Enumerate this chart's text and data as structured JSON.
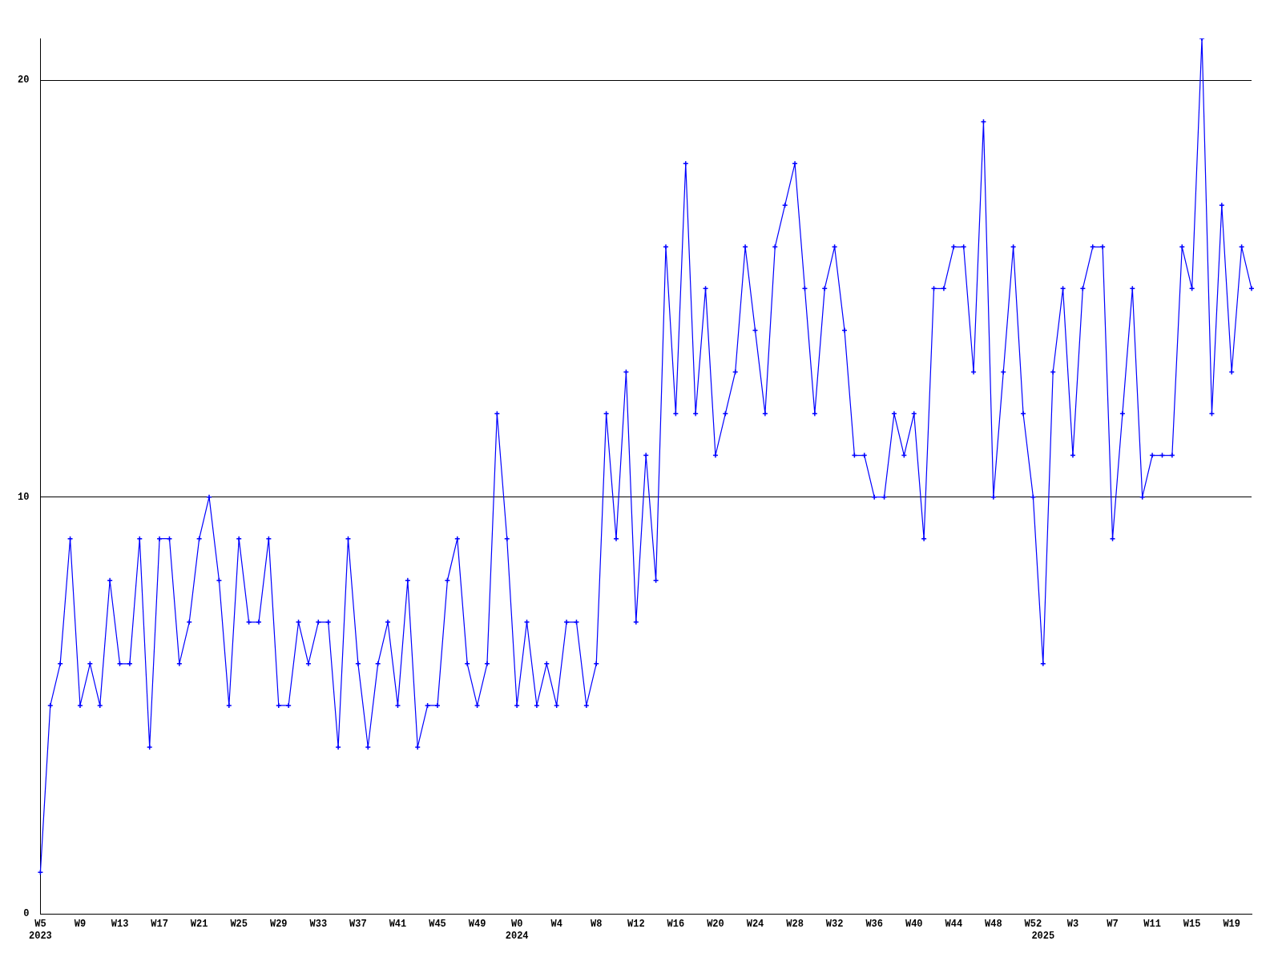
{
  "chart_data": {
    "type": "line",
    "categories": [
      "W5\n2023",
      null,
      null,
      null,
      "W9",
      null,
      null,
      null,
      "W13",
      null,
      null,
      null,
      "W17",
      null,
      null,
      null,
      "W21",
      null,
      null,
      null,
      "W25",
      null,
      null,
      null,
      "W29",
      null,
      null,
      null,
      "W33",
      null,
      null,
      null,
      "W37",
      null,
      null,
      null,
      "W41",
      null,
      null,
      null,
      "W45",
      null,
      null,
      null,
      "W49",
      null,
      null,
      null,
      "W0\n2024",
      null,
      null,
      null,
      "W4",
      null,
      null,
      null,
      "W8",
      null,
      null,
      null,
      "W12",
      null,
      null,
      null,
      "W16",
      null,
      null,
      null,
      "W20",
      null,
      null,
      null,
      "W24",
      null,
      null,
      null,
      "W28",
      null,
      null,
      null,
      "W32",
      null,
      null,
      null,
      "W36",
      null,
      null,
      null,
      "W40",
      null,
      null,
      null,
      "W44",
      null,
      null,
      null,
      "W48",
      null,
      null,
      null,
      "W52",
      "\n2025",
      null,
      null,
      "W3",
      null,
      null,
      null,
      "W7",
      null,
      null,
      null,
      "W11",
      null,
      null,
      null,
      "W15",
      null,
      null,
      null,
      "W19",
      null,
      null
    ],
    "series": [
      {
        "color": "#0000ff",
        "values": [
          1,
          5,
          6,
          9,
          5,
          6,
          5,
          8,
          6,
          6,
          9,
          4,
          9,
          9,
          6,
          7,
          9,
          10,
          8,
          5,
          9,
          7,
          7,
          9,
          5,
          5,
          7,
          6,
          7,
          7,
          4,
          9,
          6,
          4,
          6,
          7,
          5,
          8,
          4,
          5,
          5,
          8,
          9,
          6,
          5,
          6,
          12,
          9,
          5,
          7,
          5,
          6,
          5,
          7,
          7,
          5,
          6,
          12,
          9,
          13,
          7,
          11,
          8,
          16,
          12,
          18,
          12,
          15,
          11,
          12,
          13,
          16,
          14,
          12,
          16,
          17,
          18,
          15,
          12,
          15,
          16,
          14,
          11,
          11,
          10,
          10,
          12,
          11,
          12,
          9,
          15,
          15,
          16,
          16,
          13,
          19,
          10,
          13,
          16,
          12,
          10,
          6,
          13,
          15,
          11,
          15,
          16,
          16,
          9,
          12,
          15,
          10,
          11,
          11,
          11,
          16,
          15,
          21,
          12,
          17,
          13,
          16,
          15
        ]
      }
    ],
    "ylim": [
      0,
      21
    ],
    "yticks": [
      0,
      10,
      20
    ],
    "grid": "y",
    "marker": "cross",
    "line_style": "solid",
    "legend": false
  }
}
